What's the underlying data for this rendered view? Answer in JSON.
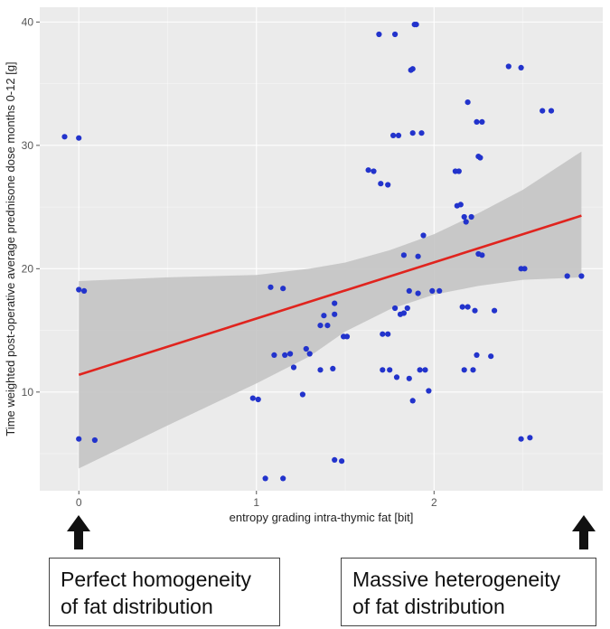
{
  "chart_data": {
    "type": "scatter",
    "title": "",
    "xlabel": "entropy grading intra-thymic fat [bit]",
    "ylabel": "Time weighted post-operative average prednisone dose months 0-12 [g]",
    "xlim": [
      -0.22,
      2.95
    ],
    "ylim": [
      2.0,
      41.2
    ],
    "xticks": [
      0,
      1,
      2
    ],
    "xtick_labels": [
      "0",
      "1",
      "2"
    ],
    "yticks": [
      10,
      20,
      30,
      40
    ],
    "ytick_labels": [
      "10",
      "20",
      "30",
      "40"
    ],
    "grid": true,
    "points": [
      [
        -0.08,
        30.7
      ],
      [
        0.0,
        30.6
      ],
      [
        0.0,
        18.3
      ],
      [
        0.03,
        18.2
      ],
      [
        0.0,
        6.2
      ],
      [
        0.09,
        6.1
      ],
      [
        0.98,
        9.5
      ],
      [
        1.01,
        9.4
      ],
      [
        1.05,
        3.0
      ],
      [
        1.15,
        3.0
      ],
      [
        1.08,
        18.5
      ],
      [
        1.15,
        18.4
      ],
      [
        1.1,
        13.0
      ],
      [
        1.16,
        13.0
      ],
      [
        1.19,
        13.1
      ],
      [
        1.21,
        12.0
      ],
      [
        1.26,
        9.8
      ],
      [
        1.28,
        13.5
      ],
      [
        1.3,
        13.1
      ],
      [
        1.36,
        11.8
      ],
      [
        1.36,
        15.4
      ],
      [
        1.38,
        16.2
      ],
      [
        1.4,
        15.4
      ],
      [
        1.43,
        11.9
      ],
      [
        1.44,
        16.3
      ],
      [
        1.44,
        17.2
      ],
      [
        1.49,
        14.5
      ],
      [
        1.51,
        14.5
      ],
      [
        1.44,
        4.5
      ],
      [
        1.48,
        4.4
      ],
      [
        1.63,
        28.0
      ],
      [
        1.66,
        27.9
      ],
      [
        1.7,
        26.9
      ],
      [
        1.74,
        26.8
      ],
      [
        1.69,
        39.0
      ],
      [
        1.78,
        39.0
      ],
      [
        1.77,
        30.8
      ],
      [
        1.8,
        30.8
      ],
      [
        1.88,
        31.0
      ],
      [
        1.93,
        31.0
      ],
      [
        1.71,
        11.8
      ],
      [
        1.75,
        11.8
      ],
      [
        1.71,
        14.7
      ],
      [
        1.74,
        14.7
      ],
      [
        1.79,
        11.2
      ],
      [
        1.86,
        11.1
      ],
      [
        1.78,
        16.8
      ],
      [
        1.81,
        16.3
      ],
      [
        1.83,
        16.4
      ],
      [
        1.85,
        16.8
      ],
      [
        1.86,
        18.2
      ],
      [
        1.91,
        18.0
      ],
      [
        1.83,
        21.1
      ],
      [
        1.91,
        21.0
      ],
      [
        1.94,
        22.7
      ],
      [
        1.87,
        36.1
      ],
      [
        1.88,
        36.2
      ],
      [
        1.89,
        39.8
      ],
      [
        1.9,
        39.8
      ],
      [
        1.88,
        9.3
      ],
      [
        1.92,
        11.8
      ],
      [
        1.95,
        11.8
      ],
      [
        1.97,
        10.1
      ],
      [
        1.99,
        18.2
      ],
      [
        2.03,
        18.2
      ],
      [
        2.12,
        27.9
      ],
      [
        2.14,
        27.9
      ],
      [
        2.13,
        25.1
      ],
      [
        2.15,
        25.2
      ],
      [
        2.17,
        24.2
      ],
      [
        2.18,
        23.8
      ],
      [
        2.21,
        24.2
      ],
      [
        2.19,
        33.5
      ],
      [
        2.24,
        31.9
      ],
      [
        2.27,
        31.9
      ],
      [
        2.25,
        29.1
      ],
      [
        2.26,
        29.0
      ],
      [
        2.25,
        21.2
      ],
      [
        2.27,
        21.1
      ],
      [
        2.16,
        16.9
      ],
      [
        2.19,
        16.9
      ],
      [
        2.23,
        16.6
      ],
      [
        2.17,
        11.8
      ],
      [
        2.22,
        11.8
      ],
      [
        2.24,
        13.0
      ],
      [
        2.32,
        12.9
      ],
      [
        2.34,
        16.6
      ],
      [
        2.42,
        36.4
      ],
      [
        2.49,
        36.3
      ],
      [
        2.49,
        20.0
      ],
      [
        2.51,
        20.0
      ],
      [
        2.49,
        6.2
      ],
      [
        2.54,
        6.3
      ],
      [
        2.61,
        32.8
      ],
      [
        2.66,
        32.8
      ],
      [
        2.75,
        19.4
      ],
      [
        2.83,
        19.4
      ]
    ],
    "fit_line": {
      "x": [
        0.0,
        2.83
      ],
      "y": [
        11.4,
        24.3
      ],
      "color": "#e0241e"
    },
    "ci_band": {
      "x": [
        0.0,
        0.5,
        1.0,
        1.3,
        1.5,
        1.75,
        2.0,
        2.25,
        2.5,
        2.83
      ],
      "lower": [
        3.8,
        7.3,
        10.7,
        12.9,
        14.9,
        16.7,
        17.9,
        18.6,
        19.1,
        19.3
      ],
      "upper": [
        19.0,
        19.3,
        19.5,
        20.0,
        20.5,
        21.5,
        22.8,
        24.5,
        26.4,
        29.5
      ]
    },
    "colors": {
      "point": "#2233cc",
      "band": "#c4c4c4",
      "panel": "#ebebeb",
      "grid": "#ffffff"
    }
  },
  "annotations": {
    "left": {
      "line1": "Perfect homogeneity",
      "line2": "of fat distribution"
    },
    "right": {
      "line1": "Massive heterogeneity",
      "line2": "of fat distribution"
    }
  }
}
